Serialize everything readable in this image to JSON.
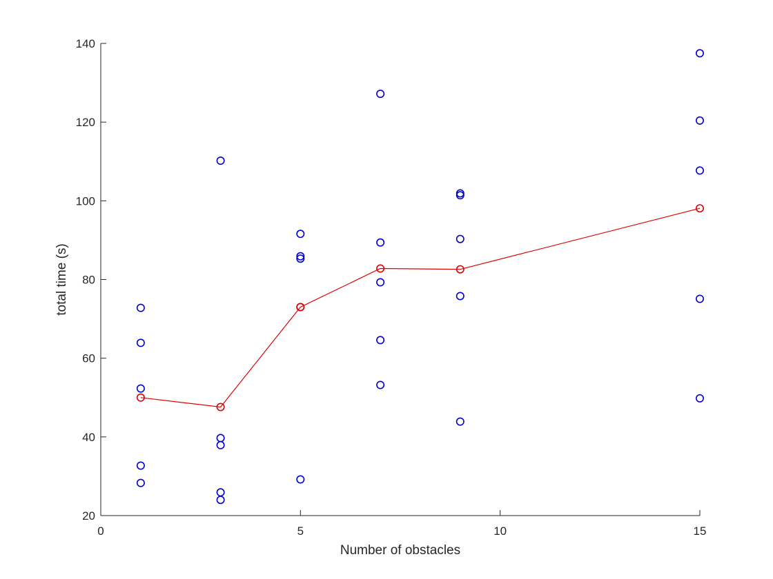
{
  "chart_data": {
    "type": "scatter",
    "xlabel": "Number of obstacles",
    "ylabel": "total time (s)",
    "xlim": [
      0,
      15
    ],
    "ylim": [
      20,
      140
    ],
    "xticks": [
      0,
      5,
      10,
      15
    ],
    "yticks": [
      20,
      40,
      60,
      80,
      100,
      120,
      140
    ],
    "grid": false,
    "series": [
      {
        "kind": "scatter",
        "color": "#0000cc",
        "marker": "circle-open",
        "points": [
          [
            1,
            72.8
          ],
          [
            1,
            63.9
          ],
          [
            1,
            52.3
          ],
          [
            1,
            32.7
          ],
          [
            1,
            28.3
          ],
          [
            3,
            110.2
          ],
          [
            3,
            39.7
          ],
          [
            3,
            37.9
          ],
          [
            3,
            25.9
          ],
          [
            3,
            24.0
          ],
          [
            5,
            91.6
          ],
          [
            5,
            85.9
          ],
          [
            5,
            85.3
          ],
          [
            5,
            73.0
          ],
          [
            5,
            29.2
          ],
          [
            7,
            127.2
          ],
          [
            7,
            89.4
          ],
          [
            7,
            79.3
          ],
          [
            7,
            64.6
          ],
          [
            7,
            53.2
          ],
          [
            9,
            101.9
          ],
          [
            9,
            101.4
          ],
          [
            9,
            90.3
          ],
          [
            9,
            75.8
          ],
          [
            9,
            43.9
          ],
          [
            15,
            137.5
          ],
          [
            15,
            120.4
          ],
          [
            15,
            107.7
          ],
          [
            15,
            75.1
          ],
          [
            15,
            49.8
          ]
        ]
      },
      {
        "kind": "line",
        "color": "#dd0000",
        "marker": "circle-open",
        "points": [
          [
            1,
            50.0
          ],
          [
            3,
            47.6
          ],
          [
            5,
            73.0
          ],
          [
            7,
            82.8
          ],
          [
            9,
            82.6
          ],
          [
            15,
            98.1
          ]
        ]
      }
    ]
  }
}
